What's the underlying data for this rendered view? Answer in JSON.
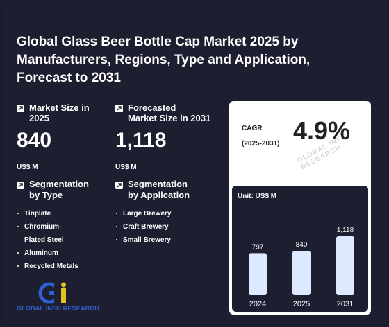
{
  "title": "Global Glass Beer Bottle Cap Market 2025 by Manufacturers, Regions, Type and Application, Forecast to 2031",
  "market_size": {
    "label_line1": "Market Size in",
    "label_line2": "2025",
    "value": "840",
    "unit": "US$ M"
  },
  "forecast": {
    "label_line1": "Forecasted",
    "label_line2": "Market Size in 2031",
    "value": "1,118",
    "unit": "US$ M"
  },
  "seg_type": {
    "label_line1": "Segmentation",
    "label_line2": "by Type",
    "items": [
      "Tinplate",
      "Chromium-Plated Steel",
      "Aluminum",
      "Recycled Metals"
    ]
  },
  "seg_app": {
    "label_line1": "Segmentation",
    "label_line2": "by Application",
    "items": [
      "Large Brewery",
      "Craft Brewery",
      "Small Brewery"
    ]
  },
  "cagr": {
    "label": "CAGR",
    "period": "(2025-2031)",
    "value": "4.9%"
  },
  "watermark": "GLOBAL INFO RESEARCH",
  "logo_text": "GLOBAL INFO RESEARCH",
  "colors": {
    "background": "#1d1f30",
    "bar": "#dce9ff",
    "card": "#ffffff"
  },
  "chart_data": {
    "type": "bar",
    "unit_label": "Unit: US$ M",
    "categories": [
      "2024",
      "2025",
      "2031"
    ],
    "values": [
      797,
      840,
      1118
    ],
    "value_labels": [
      "797",
      "840",
      "1,118"
    ],
    "ylim": [
      0,
      1118
    ]
  }
}
